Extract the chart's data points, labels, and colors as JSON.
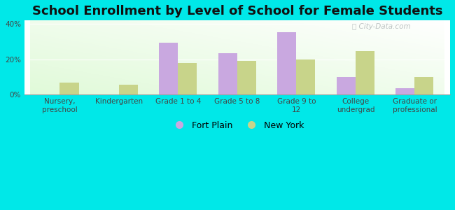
{
  "title": "School Enrollment by Level of School for Female Students",
  "categories": [
    "Nursery,\npreschool",
    "Kindergarten",
    "Grade 1 to 4",
    "Grade 5 to 8",
    "Grade 9 to\n12",
    "College\nundergrad",
    "Graduate or\nprofessional"
  ],
  "fort_plain": [
    0.0,
    0.0,
    29.5,
    23.5,
    35.5,
    10.0,
    3.5
  ],
  "new_york": [
    7.0,
    5.5,
    18.0,
    19.0,
    20.0,
    24.5,
    10.0
  ],
  "fort_plain_color": "#c9a8e0",
  "new_york_color": "#c8d48a",
  "background_color": "#00e8e8",
  "ylim": [
    0,
    42
  ],
  "yticks": [
    0,
    20,
    40
  ],
  "ytick_labels": [
    "0%",
    "20%",
    "40%"
  ],
  "legend_fort_plain": "Fort Plain",
  "legend_new_york": "New York",
  "bar_width": 0.32,
  "title_fontsize": 13,
  "tick_fontsize": 7.5,
  "legend_fontsize": 9
}
